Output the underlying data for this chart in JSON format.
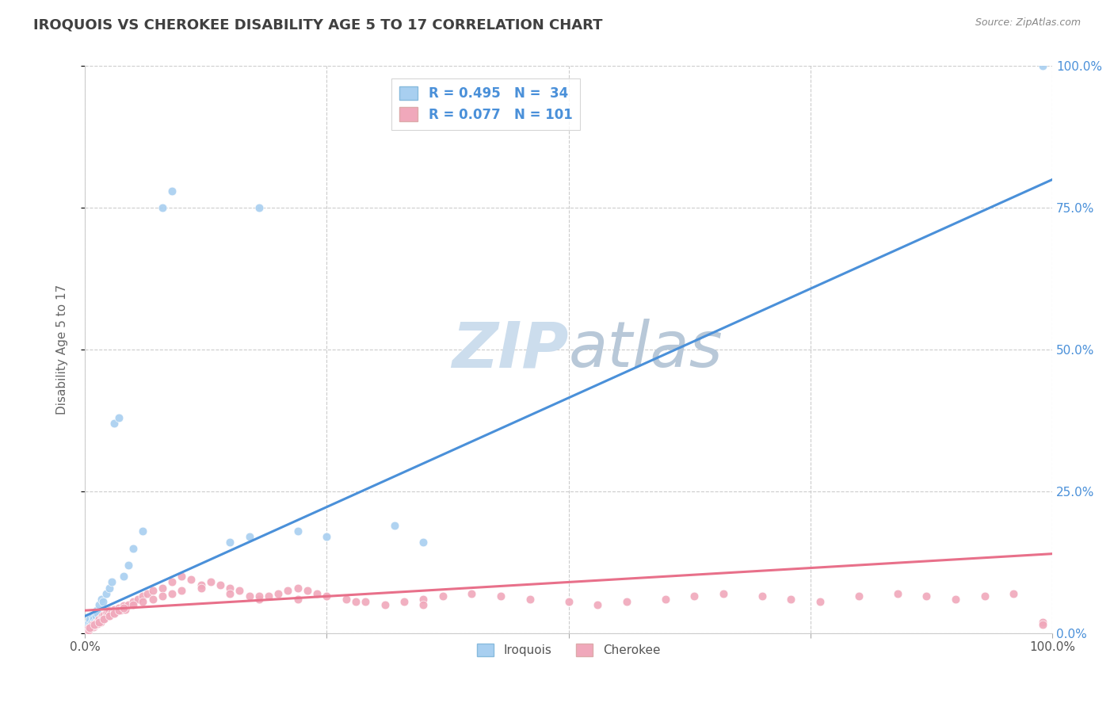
{
  "title": "IROQUOIS VS CHEROKEE DISABILITY AGE 5 TO 17 CORRELATION CHART",
  "source": "Source: ZipAtlas.com",
  "ylabel": "Disability Age 5 to 17",
  "xlim": [
    0,
    1
  ],
  "ylim": [
    0,
    1
  ],
  "iroquois_R": 0.495,
  "iroquois_N": 34,
  "cherokee_R": 0.077,
  "cherokee_N": 101,
  "iroquois_color": "#a8cff0",
  "cherokee_color": "#f0a8bb",
  "iroquois_line_color": "#4a90d9",
  "cherokee_line_color": "#e8708a",
  "legend_text_color": "#4a90d9",
  "title_color": "#404040",
  "grid_color": "#cccccc",
  "watermark_color": "#ccdded",
  "background_color": "#ffffff",
  "iroquois_x": [
    0.002,
    0.003,
    0.004,
    0.005,
    0.006,
    0.007,
    0.008,
    0.009,
    0.01,
    0.011,
    0.012,
    0.013,
    0.015,
    0.017,
    0.019,
    0.022,
    0.025,
    0.028,
    0.03,
    0.035,
    0.04,
    0.045,
    0.05,
    0.06,
    0.08,
    0.09,
    0.15,
    0.17,
    0.18,
    0.22,
    0.25,
    0.32,
    0.35,
    0.99
  ],
  "iroquois_y": [
    0.01,
    0.015,
    0.02,
    0.025,
    0.015,
    0.02,
    0.03,
    0.025,
    0.02,
    0.03,
    0.04,
    0.035,
    0.05,
    0.06,
    0.055,
    0.07,
    0.08,
    0.09,
    0.37,
    0.38,
    0.1,
    0.12,
    0.15,
    0.18,
    0.75,
    0.78,
    0.16,
    0.17,
    0.75,
    0.18,
    0.17,
    0.19,
    0.16,
    1.0
  ],
  "cherokee_x": [
    0.002,
    0.003,
    0.004,
    0.005,
    0.006,
    0.007,
    0.008,
    0.009,
    0.01,
    0.011,
    0.012,
    0.013,
    0.014,
    0.015,
    0.016,
    0.017,
    0.018,
    0.019,
    0.02,
    0.021,
    0.022,
    0.023,
    0.024,
    0.025,
    0.027,
    0.03,
    0.032,
    0.035,
    0.037,
    0.04,
    0.042,
    0.045,
    0.05,
    0.055,
    0.06,
    0.065,
    0.07,
    0.08,
    0.09,
    0.1,
    0.11,
    0.12,
    0.13,
    0.14,
    0.15,
    0.16,
    0.17,
    0.18,
    0.19,
    0.2,
    0.21,
    0.22,
    0.23,
    0.24,
    0.25,
    0.27,
    0.29,
    0.31,
    0.33,
    0.35,
    0.37,
    0.4,
    0.43,
    0.46,
    0.5,
    0.53,
    0.56,
    0.6,
    0.63,
    0.66,
    0.7,
    0.73,
    0.76,
    0.8,
    0.84,
    0.87,
    0.9,
    0.93,
    0.96,
    0.99,
    0.005,
    0.01,
    0.015,
    0.02,
    0.025,
    0.03,
    0.035,
    0.04,
    0.05,
    0.06,
    0.07,
    0.08,
    0.09,
    0.1,
    0.12,
    0.15,
    0.18,
    0.22,
    0.28,
    0.35,
    0.99
  ],
  "cherokee_y": [
    0.005,
    0.008,
    0.006,
    0.01,
    0.009,
    0.012,
    0.015,
    0.011,
    0.014,
    0.018,
    0.02,
    0.016,
    0.022,
    0.025,
    0.02,
    0.028,
    0.03,
    0.026,
    0.032,
    0.028,
    0.035,
    0.03,
    0.038,
    0.04,
    0.035,
    0.042,
    0.038,
    0.045,
    0.04,
    0.048,
    0.042,
    0.05,
    0.055,
    0.06,
    0.065,
    0.07,
    0.075,
    0.08,
    0.09,
    0.1,
    0.095,
    0.085,
    0.09,
    0.085,
    0.08,
    0.075,
    0.065,
    0.06,
    0.065,
    0.07,
    0.075,
    0.08,
    0.075,
    0.07,
    0.065,
    0.06,
    0.055,
    0.05,
    0.055,
    0.06,
    0.065,
    0.07,
    0.065,
    0.06,
    0.055,
    0.05,
    0.055,
    0.06,
    0.065,
    0.07,
    0.065,
    0.06,
    0.055,
    0.065,
    0.07,
    0.065,
    0.06,
    0.065,
    0.07,
    0.02,
    0.01,
    0.015,
    0.02,
    0.025,
    0.03,
    0.035,
    0.04,
    0.045,
    0.05,
    0.055,
    0.06,
    0.065,
    0.07,
    0.075,
    0.08,
    0.07,
    0.065,
    0.06,
    0.055,
    0.05,
    0.015
  ],
  "iroquois_line_x0": 0.0,
  "iroquois_line_y0": 0.03,
  "iroquois_line_x1": 1.0,
  "iroquois_line_y1": 0.8,
  "cherokee_line_x0": 0.0,
  "cherokee_line_y0": 0.04,
  "cherokee_line_x1": 1.0,
  "cherokee_line_y1": 0.14
}
